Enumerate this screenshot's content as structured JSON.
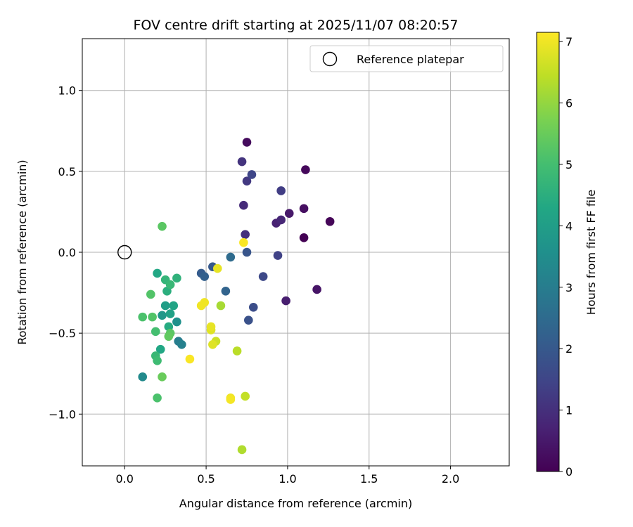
{
  "chart_data": {
    "type": "scatter",
    "title": "FOV centre drift starting at 2025/11/07 08:20:57",
    "xlabel": "Angular distance from reference (arcmin)",
    "ylabel": "Rotation from reference (arcmin)",
    "xlim": [
      -0.26,
      2.36
    ],
    "ylim": [
      -1.32,
      1.32
    ],
    "xticks": [
      0.0,
      0.5,
      1.0,
      1.5,
      2.0
    ],
    "xtick_labels": [
      "0.0",
      "0.5",
      "1.0",
      "1.5",
      "2.0"
    ],
    "yticks": [
      -1.0,
      -0.5,
      0.0,
      0.5,
      1.0
    ],
    "ytick_labels": [
      "−1.0",
      "−0.5",
      "0.0",
      "0.5",
      "1.0"
    ],
    "grid": true,
    "legend": {
      "position": "top-right",
      "entries": [
        "Reference platepar"
      ]
    },
    "reference_point": {
      "x": 0.0,
      "y": 0.0,
      "label": "Reference platepar"
    },
    "colorbar": {
      "label": "Hours from first FF file",
      "colormap": "viridis",
      "range": [
        0,
        7.15
      ],
      "ticks": [
        0,
        1,
        2,
        3,
        4,
        5,
        6,
        7
      ],
      "tick_labels": [
        "0",
        "1",
        "2",
        "3",
        "4",
        "5",
        "6",
        "7"
      ]
    },
    "points": [
      {
        "x": 1.1,
        "y": 0.09,
        "t": 0.0
      },
      {
        "x": 1.26,
        "y": 0.19,
        "t": 0.1
      },
      {
        "x": 1.11,
        "y": 0.51,
        "t": 0.15
      },
      {
        "x": 1.1,
        "y": 0.27,
        "t": 0.3
      },
      {
        "x": 0.75,
        "y": 0.68,
        "t": 0.2
      },
      {
        "x": 1.18,
        "y": -0.23,
        "t": 0.4
      },
      {
        "x": 1.01,
        "y": 0.24,
        "t": 0.5
      },
      {
        "x": 0.99,
        "y": -0.3,
        "t": 0.6
      },
      {
        "x": 0.93,
        "y": 0.18,
        "t": 0.7
      },
      {
        "x": 0.96,
        "y": 0.2,
        "t": 0.8
      },
      {
        "x": 0.73,
        "y": 0.29,
        "t": 0.9
      },
      {
        "x": 0.74,
        "y": 0.11,
        "t": 1.0
      },
      {
        "x": 0.72,
        "y": 0.56,
        "t": 1.1
      },
      {
        "x": 0.75,
        "y": 0.44,
        "t": 1.2
      },
      {
        "x": 0.96,
        "y": 0.38,
        "t": 1.3
      },
      {
        "x": 0.94,
        "y": -0.02,
        "t": 1.4
      },
      {
        "x": 0.78,
        "y": 0.48,
        "t": 1.5
      },
      {
        "x": 0.85,
        "y": -0.15,
        "t": 1.6
      },
      {
        "x": 0.79,
        "y": -0.34,
        "t": 1.7
      },
      {
        "x": 0.76,
        "y": -0.42,
        "t": 1.8
      },
      {
        "x": 0.75,
        "y": 0.0,
        "t": 1.9
      },
      {
        "x": 0.54,
        "y": -0.09,
        "t": 2.0
      },
      {
        "x": 0.47,
        "y": -0.13,
        "t": 2.1
      },
      {
        "x": 0.49,
        "y": -0.15,
        "t": 2.2
      },
      {
        "x": 0.62,
        "y": -0.24,
        "t": 2.3
      },
      {
        "x": 0.65,
        "y": -0.03,
        "t": 2.5
      },
      {
        "x": 0.33,
        "y": -0.55,
        "t": 3.0
      },
      {
        "x": 0.35,
        "y": -0.57,
        "t": 3.1
      },
      {
        "x": 0.11,
        "y": -0.77,
        "t": 3.4
      },
      {
        "x": 0.32,
        "y": -0.43,
        "t": 3.6
      },
      {
        "x": 0.23,
        "y": -0.39,
        "t": 3.8
      },
      {
        "x": 0.25,
        "y": -0.33,
        "t": 4.0
      },
      {
        "x": 0.28,
        "y": -0.38,
        "t": 4.1
      },
      {
        "x": 0.3,
        "y": -0.33,
        "t": 4.2
      },
      {
        "x": 0.2,
        "y": -0.13,
        "t": 4.3
      },
      {
        "x": 0.22,
        "y": -0.6,
        "t": 4.3
      },
      {
        "x": 0.27,
        "y": -0.46,
        "t": 4.4
      },
      {
        "x": 0.26,
        "y": -0.24,
        "t": 4.5
      },
      {
        "x": 0.32,
        "y": -0.16,
        "t": 4.6
      },
      {
        "x": 0.25,
        "y": -0.17,
        "t": 4.7
      },
      {
        "x": 0.28,
        "y": -0.2,
        "t": 4.8
      },
      {
        "x": 0.19,
        "y": -0.64,
        "t": 4.8
      },
      {
        "x": 0.2,
        "y": -0.67,
        "t": 4.9
      },
      {
        "x": 0.19,
        "y": -0.49,
        "t": 5.0
      },
      {
        "x": 0.11,
        "y": -0.4,
        "t": 5.1
      },
      {
        "x": 0.17,
        "y": -0.4,
        "t": 5.2
      },
      {
        "x": 0.28,
        "y": -0.5,
        "t": 5.3
      },
      {
        "x": 0.27,
        "y": -0.52,
        "t": 5.4
      },
      {
        "x": 0.16,
        "y": -0.26,
        "t": 5.2
      },
      {
        "x": 0.2,
        "y": -0.9,
        "t": 5.1
      },
      {
        "x": 0.23,
        "y": 0.16,
        "t": 5.3
      },
      {
        "x": 0.23,
        "y": -0.77,
        "t": 5.5
      },
      {
        "x": 0.59,
        "y": -0.33,
        "t": 6.2
      },
      {
        "x": 0.69,
        "y": -0.61,
        "t": 6.4
      },
      {
        "x": 0.72,
        "y": -1.22,
        "t": 6.3
      },
      {
        "x": 0.74,
        "y": -0.89,
        "t": 6.5
      },
      {
        "x": 0.56,
        "y": -0.55,
        "t": 6.6
      },
      {
        "x": 0.54,
        "y": -0.57,
        "t": 6.8
      },
      {
        "x": 0.53,
        "y": -0.48,
        "t": 6.8
      },
      {
        "x": 0.53,
        "y": -0.46,
        "t": 6.9
      },
      {
        "x": 0.47,
        "y": -0.33,
        "t": 7.0
      },
      {
        "x": 0.49,
        "y": -0.31,
        "t": 7.0
      },
      {
        "x": 0.57,
        "y": -0.1,
        "t": 6.9
      },
      {
        "x": 0.65,
        "y": -0.9,
        "t": 7.0
      },
      {
        "x": 0.65,
        "y": -0.91,
        "t": 7.05
      },
      {
        "x": 0.4,
        "y": -0.66,
        "t": 7.1
      },
      {
        "x": 0.73,
        "y": 0.06,
        "t": 7.1
      }
    ]
  }
}
